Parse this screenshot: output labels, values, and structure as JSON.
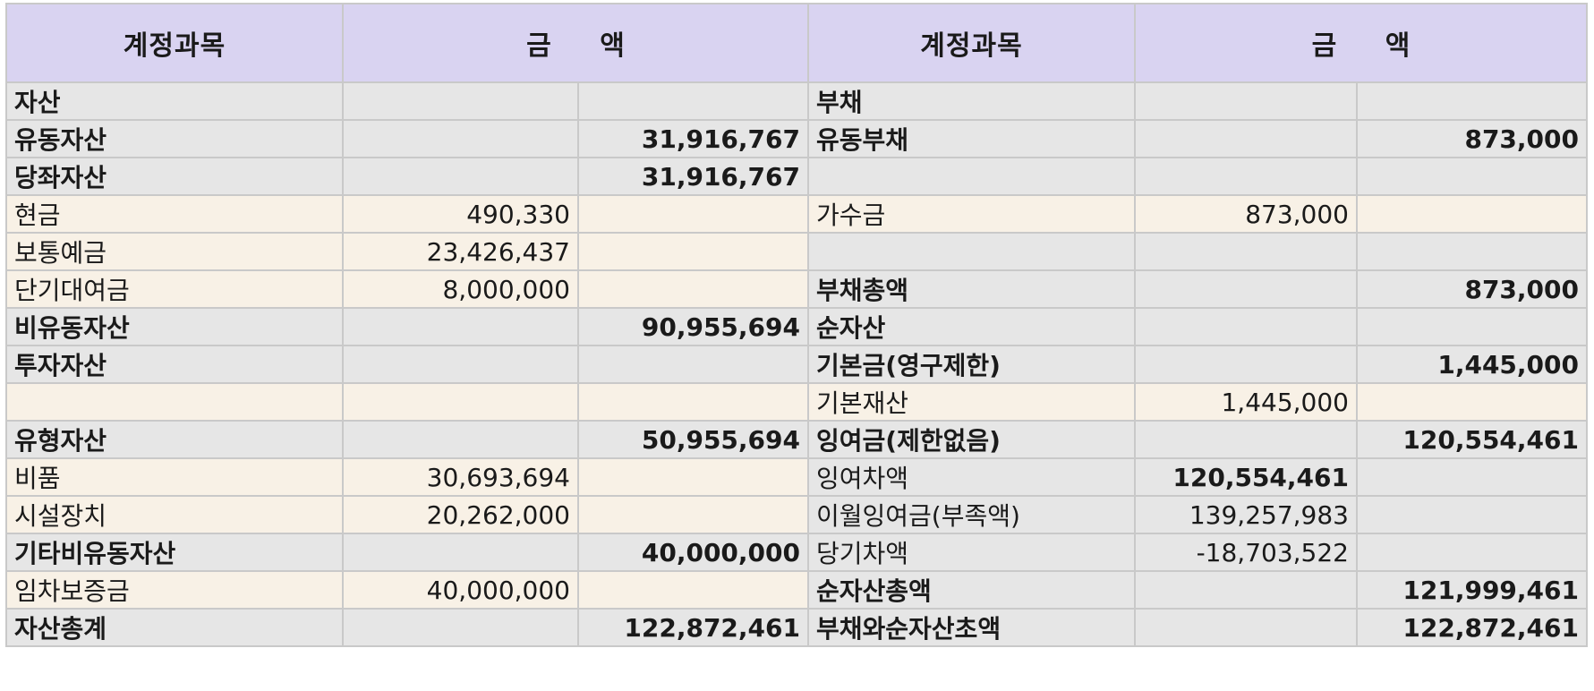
{
  "header": {
    "account_left": "계정과목",
    "amount_left": "금 액",
    "account_right": "계정과목",
    "amount_right": "금 액"
  },
  "rows": [
    {
      "style": "g",
      "left": {
        "label": "자산",
        "indent": 0,
        "bold": true,
        "detail": "",
        "total": "",
        "detail_bold": false
      },
      "right": {
        "label": "부채",
        "indent": 0,
        "bold": true,
        "detail": "",
        "total": "",
        "detail_bold": false
      }
    },
    {
      "style": "g",
      "left": {
        "label": "유동자산",
        "indent": 1,
        "bold": true,
        "detail": "",
        "total": "31,916,767",
        "detail_bold": false
      },
      "right": {
        "label": "유동부채",
        "indent": 2,
        "bold": true,
        "detail": "",
        "total": "873,000",
        "detail_bold": false
      }
    },
    {
      "style": "g",
      "left": {
        "label": "당좌자산",
        "indent": 2,
        "bold": true,
        "detail": "",
        "total": "31,916,767",
        "detail_bold": false
      },
      "right": {
        "label": "",
        "indent": 0,
        "bold": false,
        "detail": "",
        "total": "",
        "detail_bold": false
      }
    },
    {
      "style": "b",
      "left": {
        "label": "현금",
        "indent": 4,
        "bold": false,
        "detail": "490,330",
        "total": "",
        "detail_bold": false
      },
      "right": {
        "label": "가수금",
        "indent": 2,
        "bold": false,
        "detail": "873,000",
        "total": "",
        "detail_bold": false
      }
    },
    {
      "style": "b",
      "left": {
        "label": "보통예금",
        "indent": 4,
        "bold": false,
        "detail": "23,426,437",
        "total": "",
        "detail_bold": false
      },
      "right": {
        "label": "",
        "indent": 0,
        "bold": false,
        "detail": "",
        "total": "",
        "detail_bold": false
      },
      "right_style": "g"
    },
    {
      "style": "b",
      "left": {
        "label": "단기대여금",
        "indent": 4,
        "bold": false,
        "detail": "8,000,000",
        "total": "",
        "detail_bold": false
      },
      "right": {
        "label": "부채총액",
        "indent": 1,
        "bold": true,
        "detail": "",
        "total": "873,000",
        "detail_bold": false
      },
      "right_style": "g"
    },
    {
      "style": "g",
      "left": {
        "label": "비유동자산",
        "indent": 2,
        "bold": true,
        "detail": "",
        "total": "90,955,694",
        "detail_bold": false
      },
      "right": {
        "label": "순자산",
        "indent": 1,
        "bold": true,
        "detail": "",
        "total": "",
        "detail_bold": false
      }
    },
    {
      "style": "g",
      "left": {
        "label": "투자자산",
        "indent": 3,
        "bold": true,
        "detail": "",
        "total": "",
        "detail_bold": false
      },
      "right": {
        "label": "기본금(영구제한)",
        "indent": 1,
        "bold": true,
        "detail": "",
        "total": "1,445,000",
        "detail_bold": false
      }
    },
    {
      "style": "b",
      "left": {
        "label": "",
        "indent": 0,
        "bold": false,
        "detail": "",
        "total": "",
        "detail_bold": false
      },
      "right": {
        "label": "기본재산",
        "indent": 2,
        "bold": false,
        "detail": "1,445,000",
        "total": "",
        "detail_bold": false
      }
    },
    {
      "style": "g",
      "left": {
        "label": "유형자산",
        "indent": 3,
        "bold": true,
        "detail": "",
        "total": "50,955,694",
        "detail_bold": false
      },
      "right": {
        "label": "잉여금(제한없음)",
        "indent": 2,
        "bold": true,
        "detail": "",
        "total": "120,554,461",
        "detail_bold": false
      }
    },
    {
      "style": "b",
      "left": {
        "label": "비품",
        "indent": 4,
        "bold": false,
        "detail": "30,693,694",
        "total": "",
        "detail_bold": false
      },
      "right": {
        "label": "잉여차액",
        "indent": 2,
        "bold": false,
        "detail": "120,554,461",
        "total": "",
        "detail_bold": true
      },
      "right_style": "g"
    },
    {
      "style": "b",
      "left": {
        "label": "시설장치",
        "indent": 4,
        "bold": false,
        "detail": "20,262,000",
        "total": "",
        "detail_bold": false
      },
      "right": {
        "label": "이월잉여금(부족액)",
        "indent": 2,
        "bold": false,
        "detail": "139,257,983",
        "total": "",
        "detail_bold": false
      },
      "right_style": "g"
    },
    {
      "style": "g",
      "left": {
        "label": "기타비유동자산",
        "indent": 3,
        "bold": true,
        "detail": "",
        "total": "40,000,000",
        "detail_bold": false
      },
      "right": {
        "label": "당기차액",
        "indent": 2,
        "bold": false,
        "detail": "-18,703,522",
        "total": "",
        "detail_bold": false
      }
    },
    {
      "style": "b",
      "left": {
        "label": "임차보증금",
        "indent": 4,
        "bold": false,
        "detail": "40,000,000",
        "total": "",
        "detail_bold": false
      },
      "right": {
        "label": "순자산총액",
        "indent": 1,
        "bold": true,
        "detail": "",
        "total": "121,999,461",
        "detail_bold": false
      },
      "right_style": "g"
    },
    {
      "style": "g",
      "left": {
        "label": "자산총계",
        "indent": 0,
        "bold": true,
        "detail": "",
        "total": "122,872,461",
        "detail_bold": false
      },
      "right": {
        "label": "부채와순자산초액",
        "indent": 0,
        "bold": true,
        "detail": "",
        "total": "122,872,461",
        "detail_bold": false
      }
    }
  ]
}
